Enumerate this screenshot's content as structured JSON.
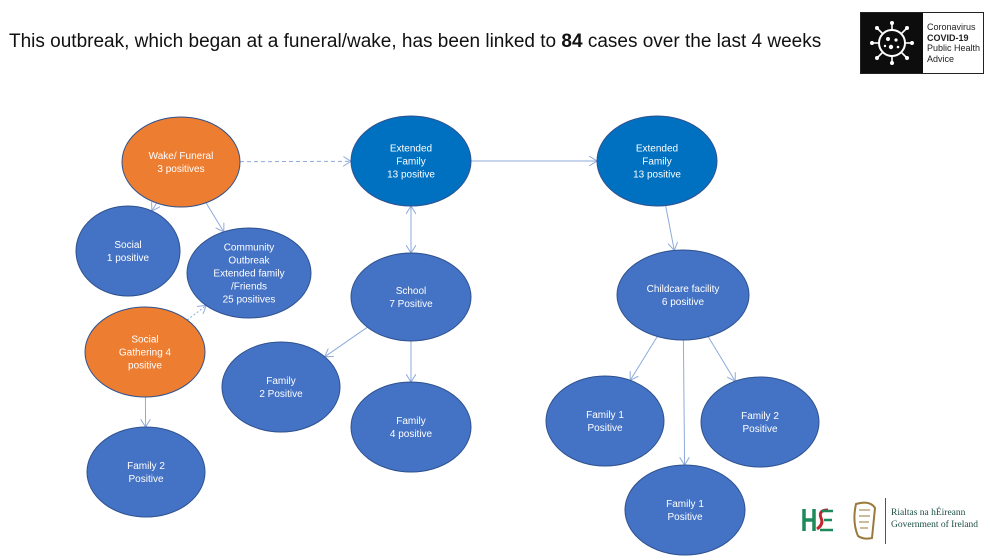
{
  "header": {
    "text_before": "This outbreak, which began at a funeral/wake, has been linked to ",
    "count": "84",
    "text_after": " cases over the last 4 weeks"
  },
  "badge": {
    "line1": "Coronavirus",
    "line2": "COVID-19",
    "line3": "Public Health",
    "line4": "Advice",
    "icon": "virus-icon"
  },
  "government": {
    "hse_logo": "hse-logo",
    "harp_logo": "harp-emblem-icon",
    "line1": "Rialtas na hÉireann",
    "line2": "Government of Ireland"
  },
  "colors": {
    "origin": "#ED7D31",
    "node": "#4472C4",
    "extended": "#0070C0",
    "edge": "#8FAADC"
  },
  "nodes": [
    {
      "id": "wake",
      "lines": [
        "Wake/ Funeral",
        "3 positives"
      ],
      "kind": "origin"
    },
    {
      "id": "social",
      "lines": [
        "Social",
        "1 positive"
      ],
      "kind": "node"
    },
    {
      "id": "community",
      "lines": [
        "Community",
        "Outbreak",
        "Extended family",
        "/Friends",
        "25 positives"
      ],
      "kind": "node"
    },
    {
      "id": "gathering",
      "lines": [
        "Social",
        "Gathering 4",
        "positive"
      ],
      "kind": "origin"
    },
    {
      "id": "family2a",
      "lines": [
        "Family 2",
        "Positive"
      ],
      "kind": "node"
    },
    {
      "id": "ext1",
      "lines": [
        "Extended",
        "Family",
        "13 positive"
      ],
      "kind": "extended"
    },
    {
      "id": "school",
      "lines": [
        "School",
        "7 Positive"
      ],
      "kind": "node"
    },
    {
      "id": "family2b",
      "lines": [
        "Family",
        "2 Positive"
      ],
      "kind": "node"
    },
    {
      "id": "family4",
      "lines": [
        "Family",
        "4 positive"
      ],
      "kind": "node"
    },
    {
      "id": "ext2",
      "lines": [
        "Extended",
        "Family",
        "13 positive"
      ],
      "kind": "extended"
    },
    {
      "id": "childcare",
      "lines": [
        "Childcare facility",
        "6 positive"
      ],
      "kind": "node"
    },
    {
      "id": "family1a",
      "lines": [
        "Family 1",
        "Positive"
      ],
      "kind": "node"
    },
    {
      "id": "family2c",
      "lines": [
        "Family 2",
        "Positive"
      ],
      "kind": "node"
    },
    {
      "id": "family1b",
      "lines": [
        "Family 1",
        "Positive"
      ],
      "kind": "node"
    }
  ],
  "edges": [
    {
      "from": "wake",
      "to": "ext1",
      "style": "dashed"
    },
    {
      "from": "wake",
      "to": "social",
      "style": "solid"
    },
    {
      "from": "wake",
      "to": "community",
      "style": "solid"
    },
    {
      "from": "gathering",
      "to": "community",
      "style": "dotted"
    },
    {
      "from": "gathering",
      "to": "family2a",
      "style": "solid"
    },
    {
      "from": "ext1",
      "to": "ext2",
      "style": "solid"
    },
    {
      "from": "ext1",
      "to": "school",
      "style": "double"
    },
    {
      "from": "school",
      "to": "family2b",
      "style": "solid"
    },
    {
      "from": "school",
      "to": "family4",
      "style": "solid"
    },
    {
      "from": "ext2",
      "to": "childcare",
      "style": "solid"
    },
    {
      "from": "childcare",
      "to": "family1a",
      "style": "solid"
    },
    {
      "from": "childcare",
      "to": "family2c",
      "style": "solid"
    },
    {
      "from": "childcare",
      "to": "family1b",
      "style": "solid"
    }
  ]
}
